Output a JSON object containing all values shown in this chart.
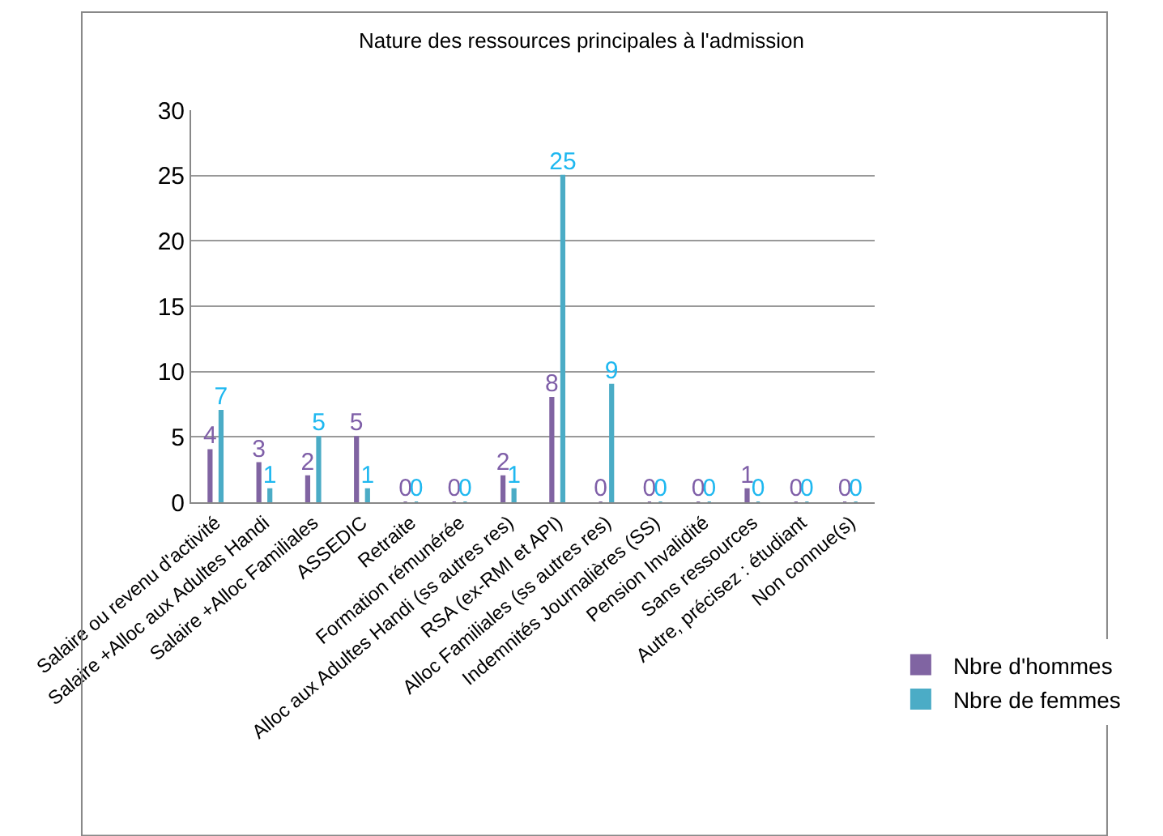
{
  "chart_data": {
    "type": "bar",
    "title": "Nature des ressources principales à l'admission",
    "categories": [
      "Salaire ou revenu d'activité",
      "Salaire +Alloc aux Adultes Handi",
      "Salaire +Alloc Familiales",
      "ASSEDIC",
      "Retraite",
      "Formation rémunérée",
      "Alloc aux Adultes Handi (ss autres res)",
      "RSA (ex-RMI et API)",
      "Alloc Familiales (ss autres res)",
      "Indemnités Journalières (SS)",
      "Pension Invalidité",
      "Sans ressources",
      "Autre, précisez : étudiant",
      "Non connue(s)"
    ],
    "series": [
      {
        "name": "Nbre d'hommes",
        "color": "#8064a2",
        "values": [
          4,
          3,
          2,
          5,
          0,
          0,
          2,
          8,
          0,
          0,
          0,
          1,
          0,
          0
        ]
      },
      {
        "name": "Nbre de femmes",
        "color": "#4bacc6",
        "values": [
          7,
          1,
          5,
          1,
          0,
          0,
          1,
          25,
          9,
          0,
          0,
          0,
          0,
          0
        ]
      }
    ],
    "ylim": [
      0,
      30
    ],
    "yticks": [
      0,
      5,
      10,
      15,
      20,
      25,
      30
    ],
    "grid": "y",
    "legend": "right",
    "data_labels": true
  }
}
